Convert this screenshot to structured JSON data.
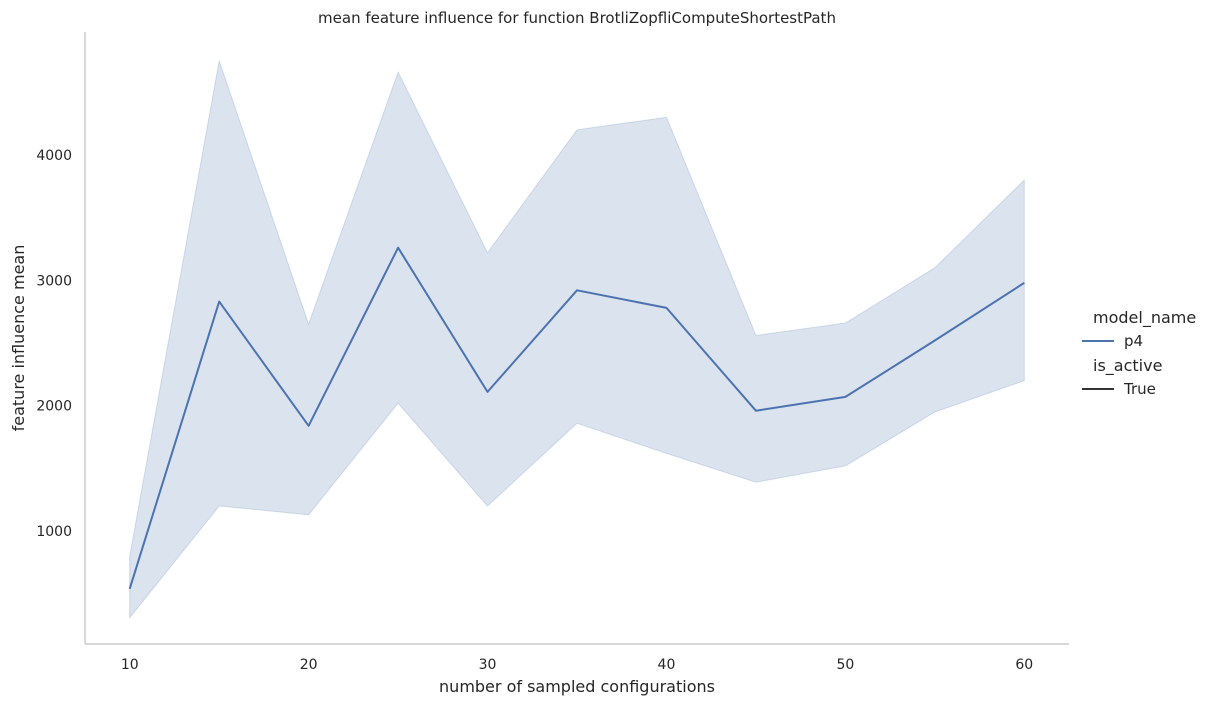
{
  "chart_data": {
    "type": "line",
    "title": "mean feature influence for function BrotliZopfliComputeShortestPath",
    "xlabel": "number of sampled configurations",
    "ylabel": "feature influence mean",
    "xlim": [
      7.5,
      62.5
    ],
    "ylim": [
      100,
      4980
    ],
    "xticks": [
      10,
      20,
      30,
      40,
      50,
      60
    ],
    "yticks": [
      1000,
      2000,
      3000,
      4000
    ],
    "grid": false,
    "x": [
      10,
      15,
      20,
      25,
      30,
      35,
      40,
      45,
      50,
      55,
      60
    ],
    "series": [
      {
        "name": "p4",
        "color": "#4c72b0",
        "values": [
          540,
          2830,
          1840,
          3260,
          2110,
          2920,
          2780,
          1960,
          2070,
          2520,
          2980
        ],
        "ci_lower": [
          310,
          1200,
          1130,
          2020,
          1200,
          1860,
          1620,
          1390,
          1520,
          1950,
          2200
        ],
        "ci_upper": [
          800,
          4750,
          2650,
          4660,
          3220,
          4200,
          4300,
          2560,
          2660,
          3100,
          3800
        ]
      }
    ],
    "legend": {
      "placement": "right",
      "hue_title": "model_name",
      "hue_entries": [
        {
          "label": "p4",
          "color": "#4c72b0"
        }
      ],
      "style_title": "is_active",
      "style_entries": [
        {
          "label": "True",
          "color": "#333333"
        }
      ]
    }
  }
}
